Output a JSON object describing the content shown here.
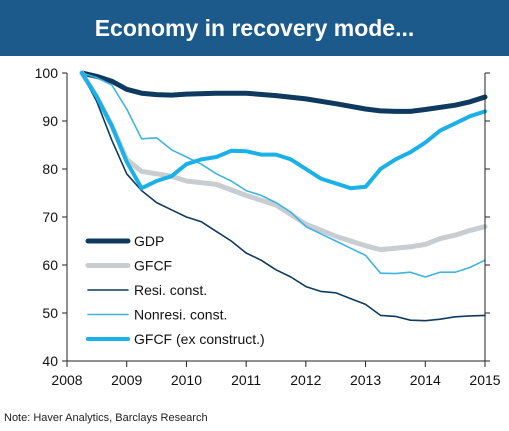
{
  "title": "Economy in recovery mode...",
  "note": "Note: Haver Analytics, Barclays Research",
  "chart_data": {
    "type": "line",
    "xlim": [
      2008,
      2015
    ],
    "ylim": [
      40,
      100
    ],
    "xticks": [
      2008,
      2009,
      2010,
      2011,
      2012,
      2013,
      2014,
      2015
    ],
    "yticks": [
      40,
      50,
      60,
      70,
      80,
      90,
      100
    ],
    "grid": false,
    "legend_position": "bottom-left",
    "series": [
      {
        "name": "GDP",
        "color": "#0f3a5f",
        "width": 5,
        "points": [
          [
            2008.25,
            100
          ],
          [
            2008.5,
            99.3
          ],
          [
            2008.75,
            98.3
          ],
          [
            2009,
            96.6
          ],
          [
            2009.25,
            95.8
          ],
          [
            2009.5,
            95.5
          ],
          [
            2009.75,
            95.4
          ],
          [
            2010,
            95.6
          ],
          [
            2010.5,
            95.8
          ],
          [
            2011,
            95.8
          ],
          [
            2011.5,
            95.3
          ],
          [
            2012,
            94.6
          ],
          [
            2012.5,
            93.6
          ],
          [
            2013,
            92.5
          ],
          [
            2013.25,
            92.1
          ],
          [
            2013.5,
            92.0
          ],
          [
            2013.75,
            92.0
          ],
          [
            2014,
            92.4
          ],
          [
            2014.5,
            93.3
          ],
          [
            2014.75,
            94.0
          ],
          [
            2015,
            95.0
          ]
        ]
      },
      {
        "name": "GFCF",
        "color": "#c8cdd2",
        "width": 5,
        "points": [
          [
            2008.25,
            100
          ],
          [
            2008.5,
            95
          ],
          [
            2008.75,
            89
          ],
          [
            2009,
            82
          ],
          [
            2009.25,
            79.5
          ],
          [
            2009.5,
            79
          ],
          [
            2009.75,
            78.5
          ],
          [
            2010,
            77.5
          ],
          [
            2010.5,
            76.8
          ],
          [
            2011,
            74.5
          ],
          [
            2011.5,
            72.5
          ],
          [
            2012,
            68.5
          ],
          [
            2012.5,
            66
          ],
          [
            2013,
            64
          ],
          [
            2013.25,
            63.2
          ],
          [
            2013.5,
            63.5
          ],
          [
            2013.75,
            63.8
          ],
          [
            2014,
            64.3
          ],
          [
            2014.25,
            65.5
          ],
          [
            2014.5,
            66.2
          ],
          [
            2014.75,
            67.2
          ],
          [
            2015,
            68
          ]
        ]
      },
      {
        "name": "Resi. const.",
        "color": "#0f3a5f",
        "width": 1.6,
        "points": [
          [
            2008.25,
            100
          ],
          [
            2008.5,
            94
          ],
          [
            2008.75,
            86
          ],
          [
            2009,
            79
          ],
          [
            2009.25,
            75.5
          ],
          [
            2009.5,
            73
          ],
          [
            2009.75,
            71.5
          ],
          [
            2010,
            70
          ],
          [
            2010.25,
            69
          ],
          [
            2010.5,
            67
          ],
          [
            2010.75,
            65
          ],
          [
            2011,
            62.5
          ],
          [
            2011.25,
            61
          ],
          [
            2011.5,
            59
          ],
          [
            2011.75,
            57.5
          ],
          [
            2012,
            55.5
          ],
          [
            2012.25,
            54.5
          ],
          [
            2012.5,
            54.2
          ],
          [
            2012.75,
            53
          ],
          [
            2013,
            51.8
          ],
          [
            2013.25,
            49.5
          ],
          [
            2013.5,
            49.3
          ],
          [
            2013.75,
            48.5
          ],
          [
            2014,
            48.4
          ],
          [
            2014.25,
            48.7
          ],
          [
            2014.5,
            49.2
          ],
          [
            2014.75,
            49.4
          ],
          [
            2015,
            49.5
          ]
        ]
      },
      {
        "name": "Nonresi. const.",
        "color": "#3fb3e3",
        "width": 1.6,
        "points": [
          [
            2008.25,
            100
          ],
          [
            2008.5,
            99
          ],
          [
            2008.75,
            97.5
          ],
          [
            2009,
            92.5
          ],
          [
            2009.25,
            86.3
          ],
          [
            2009.5,
            86.5
          ],
          [
            2009.75,
            84
          ],
          [
            2010,
            82.5
          ],
          [
            2010.25,
            81
          ],
          [
            2010.5,
            79
          ],
          [
            2010.75,
            77.5
          ],
          [
            2011,
            75.5
          ],
          [
            2011.25,
            74.5
          ],
          [
            2011.5,
            73
          ],
          [
            2011.75,
            71
          ],
          [
            2012,
            68
          ],
          [
            2012.25,
            66.5
          ],
          [
            2012.5,
            65
          ],
          [
            2012.75,
            63.5
          ],
          [
            2013,
            62
          ],
          [
            2013.25,
            58.3
          ],
          [
            2013.5,
            58.2
          ],
          [
            2013.75,
            58.5
          ],
          [
            2014,
            57.5
          ],
          [
            2014.25,
            58.5
          ],
          [
            2014.5,
            58.5
          ],
          [
            2014.75,
            59.5
          ],
          [
            2015,
            61
          ]
        ]
      },
      {
        "name": "GFCF (ex construct.)",
        "color": "#1ab0e8",
        "width": 4,
        "points": [
          [
            2008.25,
            100
          ],
          [
            2008.5,
            95
          ],
          [
            2008.75,
            89
          ],
          [
            2009,
            81.5
          ],
          [
            2009.25,
            76
          ],
          [
            2009.5,
            77.5
          ],
          [
            2009.75,
            78.5
          ],
          [
            2010,
            81
          ],
          [
            2010.25,
            82
          ],
          [
            2010.5,
            82.5
          ],
          [
            2010.75,
            83.8
          ],
          [
            2011,
            83.7
          ],
          [
            2011.25,
            83
          ],
          [
            2011.5,
            83
          ],
          [
            2011.75,
            82
          ],
          [
            2012,
            80
          ],
          [
            2012.25,
            78
          ],
          [
            2012.5,
            77
          ],
          [
            2012.75,
            76
          ],
          [
            2013,
            76.3
          ],
          [
            2013.25,
            80
          ],
          [
            2013.5,
            82
          ],
          [
            2013.75,
            83.5
          ],
          [
            2014,
            85.5
          ],
          [
            2014.25,
            88
          ],
          [
            2014.5,
            89.5
          ],
          [
            2014.75,
            91
          ],
          [
            2015,
            92
          ]
        ]
      }
    ]
  }
}
